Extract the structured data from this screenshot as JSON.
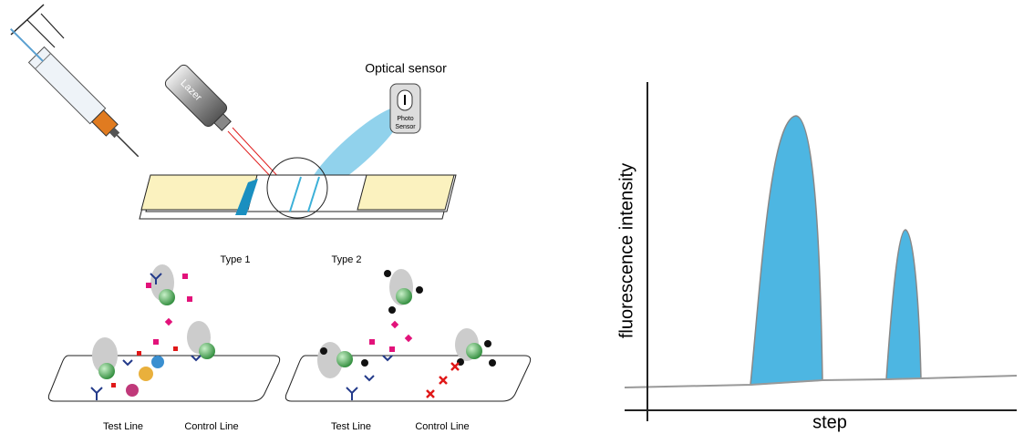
{
  "setup": {
    "sensor_title": "Optical sensor",
    "laser": "Lazer",
    "sensor_device": [
      "Photo",
      "Sensor"
    ]
  },
  "panels": [
    {
      "title": "Type 1",
      "lines": [
        "Test Line",
        "Control Line"
      ]
    },
    {
      "title": "Type 2",
      "lines": [
        "Test Line",
        "Control Line"
      ]
    }
  ],
  "graph": {
    "y_label": "fluorescence intensity",
    "x_label": "step"
  }
}
